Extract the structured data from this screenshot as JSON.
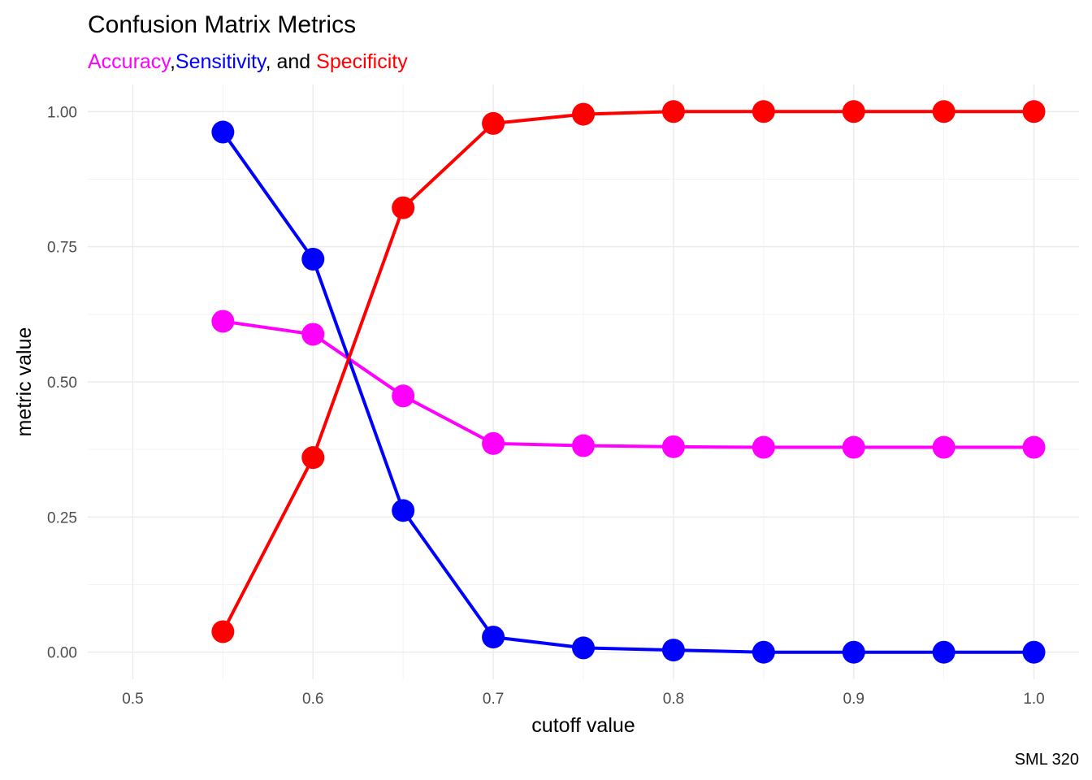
{
  "chart_data": {
    "type": "line",
    "title": "Confusion Matrix Metrics",
    "subtitle": {
      "accuracy": "Accuracy",
      "comma1": ",",
      "sensitivity": "Sensitivity",
      "middle": ", and ",
      "specificity": "Specificity"
    },
    "xlabel": "cutoff value",
    "ylabel": "metric value",
    "caption": "SML 320",
    "xlim": [
      0.475,
      1.025
    ],
    "ylim": [
      -0.05,
      1.05
    ],
    "x_ticks": [
      "0.5",
      "0.6",
      "0.7",
      "0.8",
      "0.9",
      "1.0"
    ],
    "x_tick_values": [
      0.5,
      0.6,
      0.7,
      0.8,
      0.9,
      1.0
    ],
    "y_ticks": [
      "0.00",
      "0.25",
      "0.50",
      "0.75",
      "1.00"
    ],
    "y_tick_values": [
      0,
      0.25,
      0.5,
      0.75,
      1.0
    ],
    "grid": true,
    "x": [
      0.55,
      0.6,
      0.65,
      0.7,
      0.75,
      0.8,
      0.85,
      0.9,
      0.95,
      1.0
    ],
    "series": [
      {
        "key": "accuracy",
        "color": "#ff00ff",
        "values": [
          0.612,
          0.588,
          0.474,
          0.386,
          0.382,
          0.38,
          0.379,
          0.379,
          0.379,
          0.379
        ]
      },
      {
        "key": "sensitivity",
        "color": "#0000ff",
        "values": [
          0.962,
          0.727,
          0.262,
          0.028,
          0.008,
          0.004,
          0.0,
          0.0,
          0.0,
          0.0
        ]
      },
      {
        "key": "specificity",
        "color": "#ff0000",
        "values": [
          0.038,
          0.36,
          0.822,
          0.978,
          0.995,
          1.0,
          1.0,
          1.0,
          1.0,
          1.0
        ]
      }
    ]
  }
}
